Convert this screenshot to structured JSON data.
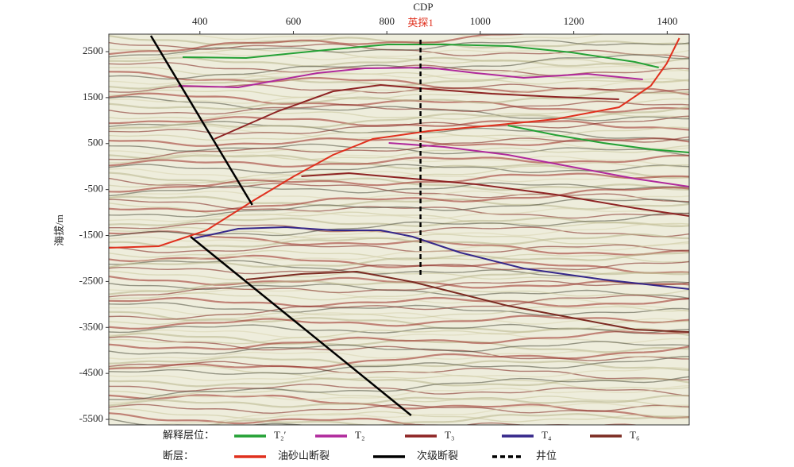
{
  "chart_data": {
    "type": "line",
    "x_label": "CDP",
    "y_label": "海拔/m",
    "xlim": [
      205,
      1447
    ],
    "ylim": [
      -5620,
      2880
    ],
    "xticks": [
      400,
      600,
      800,
      1000,
      1200,
      1400
    ],
    "yticks": [
      2500,
      1500,
      500,
      -500,
      -1500,
      -2500,
      -3500,
      -4500,
      -5500
    ],
    "annotations": [
      {
        "text": "英探1",
        "x": 872
      }
    ],
    "legend_groups": [
      "解释层位：",
      "断层："
    ],
    "series": [
      {
        "name": "T₂′",
        "group": 0,
        "color": "#24a135",
        "style": "solid",
        "x": [
          363,
          499,
          651,
          801,
          923,
          1059,
          1195,
          1331,
          1382,
          null,
          1059,
          1161,
          1263,
          1365,
          1447
        ],
        "values": [
          2379,
          2362,
          2517,
          2655,
          2655,
          2621,
          2483,
          2275,
          2154,
          null,
          893,
          686,
          513,
          375,
          306
        ]
      },
      {
        "name": "T₂",
        "group": 0,
        "color": "#b0299c",
        "style": "solid",
        "x": [
          354,
          482,
          651,
          753,
          889,
          991,
          1093,
          1229,
          1348,
          null,
          804,
          923,
          1059,
          1195,
          1331,
          1447
        ],
        "values": [
          1757,
          1723,
          2034,
          2137,
          2154,
          2034,
          1930,
          2016,
          1895,
          null,
          513,
          427,
          254,
          -5,
          -264,
          -437
        ]
      },
      {
        "name": "T₃",
        "group": 0,
        "color": "#8e2424",
        "style": "solid",
        "x": [
          431,
          567,
          685,
          787,
          889,
          1025,
          1161,
          1297,
          null,
          617,
          719,
          855,
          991,
          1161,
          1331,
          1447
        ],
        "values": [
          600,
          1204,
          1636,
          1774,
          1688,
          1584,
          1515,
          1463,
          null,
          -213,
          -143,
          -264,
          -385,
          -610,
          -904,
          -1076
        ]
      },
      {
        "name": "T₄",
        "group": 0,
        "color": "#35278a",
        "style": "solid",
        "x": [
          388,
          482,
          584,
          685,
          787,
          855,
          957,
          1093,
          1263,
          1447
        ],
        "values": [
          -1560,
          -1353,
          -1318,
          -1387,
          -1387,
          -1526,
          -1871,
          -2217,
          -2459,
          -2666
        ]
      },
      {
        "name": "T₆",
        "group": 0,
        "color": "#7c2b22",
        "style": "solid",
        "x": [
          499,
          617,
          736,
          855,
          957,
          1059,
          1195,
          1331,
          1447
        ],
        "values": [
          -2459,
          -2338,
          -2286,
          -2510,
          -2770,
          -3029,
          -3288,
          -3547,
          -3599
        ]
      },
      {
        "name": "油砂山断裂",
        "group": 1,
        "color": "#e0301e",
        "style": "solid",
        "x": [
          205,
          312,
          414,
          516,
          601,
          685,
          770,
          889,
          1025,
          1161,
          1297,
          1365,
          1399,
          1426
        ],
        "values": [
          -1768,
          -1733,
          -1387,
          -731,
          -213,
          254,
          600,
          772,
          893,
          1031,
          1291,
          1757,
          2241,
          2794
        ]
      },
      {
        "name": "次级断裂",
        "group": 1,
        "color": "#000000",
        "style": "solid",
        "x": [
          295,
          512,
          null,
          380,
          852
        ],
        "values": [
          2846,
          -834,
          null,
          -1526,
          -5413
        ]
      },
      {
        "name": "井位",
        "group": 1,
        "color": "#000000",
        "style": "dashed",
        "x": [
          872,
          872
        ],
        "values": [
          2759,
          -2424
        ]
      }
    ]
  }
}
